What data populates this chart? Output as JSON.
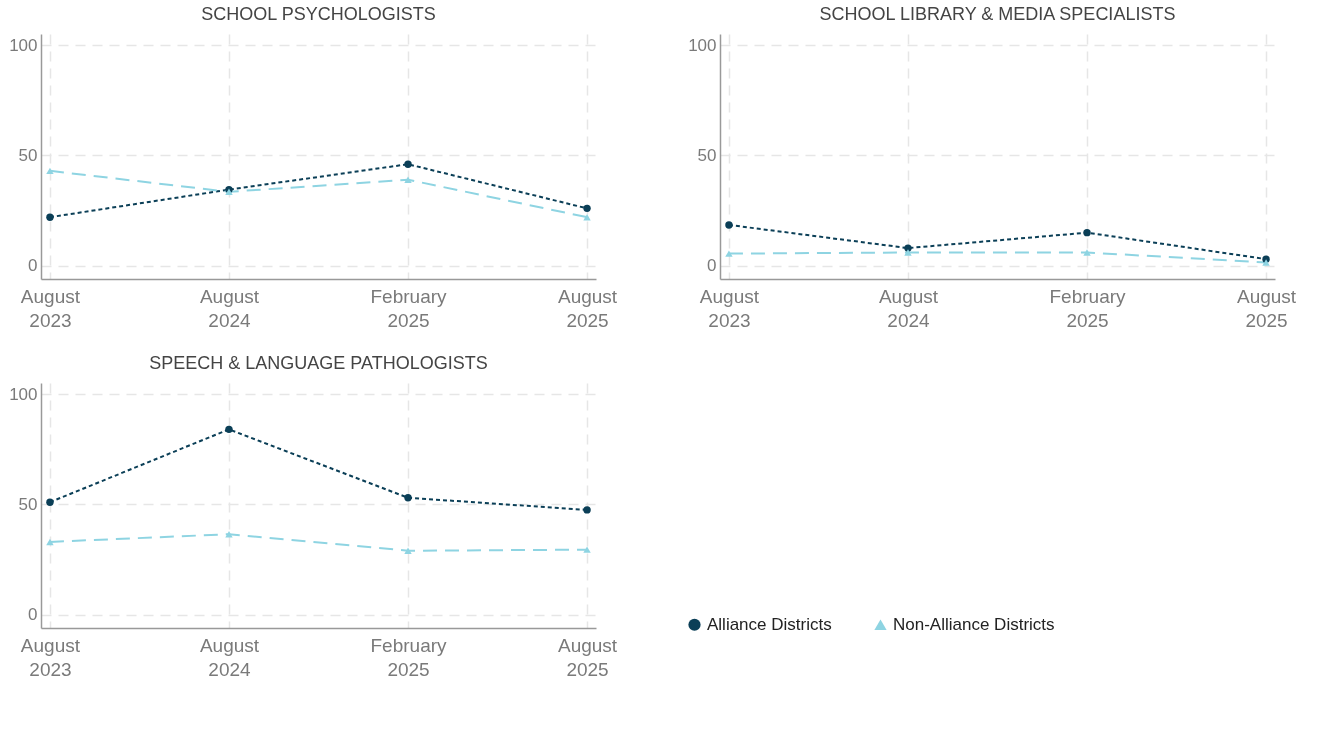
{
  "chart_data": [
    {
      "type": "line",
      "title": "SCHOOL PSYCHOLOGISTS",
      "categories": [
        "August 2023",
        "August 2024",
        "February 2025",
        "August 2025"
      ],
      "ylim": [
        -6,
        105
      ],
      "yticks": [
        0,
        50,
        100
      ],
      "grid": true,
      "series": [
        {
          "color": "#0b3f57",
          "values": [
            22,
            34.5,
            46,
            26
          ],
          "line_style": "dotted",
          "marker": "circle"
        },
        {
          "color": "#8ed4e2",
          "values": [
            43,
            33.5,
            39,
            22
          ],
          "line_style": "dashed",
          "marker": "triangle"
        }
      ]
    },
    {
      "type": "line",
      "title": "SCHOOL LIBRARY & MEDIA SPECIALISTS",
      "categories": [
        "August 2023",
        "August 2024",
        "February 2025",
        "August 2025"
      ],
      "ylim": [
        -6,
        105
      ],
      "yticks": [
        0,
        50,
        100
      ],
      "grid": true,
      "series": [
        {
          "color": "#0b3f57",
          "values": [
            18.5,
            8,
            15,
            3
          ],
          "line_style": "dotted",
          "marker": "circle"
        },
        {
          "color": "#8ed4e2",
          "values": [
            5.5,
            6,
            6,
            1.5
          ],
          "line_style": "dashed",
          "marker": "triangle"
        }
      ]
    },
    {
      "type": "line",
      "title": "SPEECH & LANGUAGE PATHOLOGISTS",
      "categories": [
        "August 2023",
        "August 2024",
        "February 2025",
        "August 2025"
      ],
      "ylim": [
        -6,
        105
      ],
      "yticks": [
        0,
        50,
        100
      ],
      "grid": true,
      "legend": "right",
      "series": [
        {
          "name": "Alliance Districts",
          "color": "#0b3f57",
          "values": [
            51,
            84,
            53,
            47.5
          ],
          "line_style": "dotted",
          "marker": "circle"
        },
        {
          "name": "Non-Alliance Districts",
          "color": "#8ed4e2",
          "values": [
            33,
            36.5,
            29,
            29.5
          ],
          "line_style": "dashed",
          "marker": "triangle"
        }
      ]
    }
  ]
}
